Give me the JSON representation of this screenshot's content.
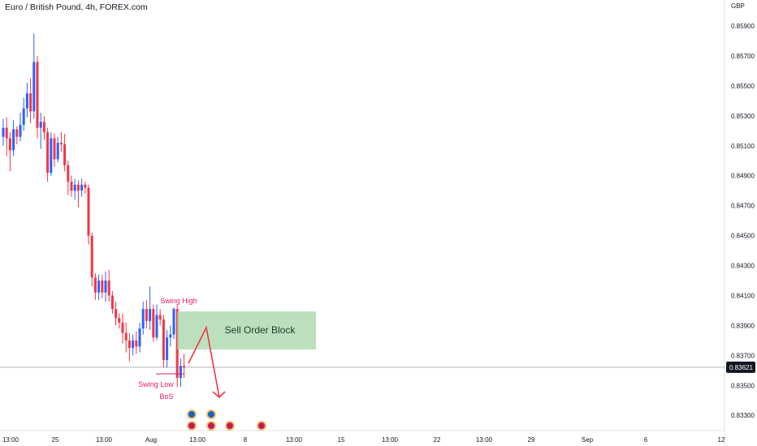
{
  "chart_data": {
    "type": "candlestick",
    "title": "Euro / British Pound, 4h, FOREX.com",
    "currency": "GBP",
    "ylim": [
      0.8322,
      0.8603
    ],
    "y_ticks": [
      "0.85900",
      "0.85700",
      "0.85500",
      "0.85300",
      "0.85100",
      "0.84900",
      "0.84700",
      "0.84500",
      "0.84300",
      "0.84100",
      "0.83900",
      "0.83700",
      "0.83500",
      "0.83300"
    ],
    "current_price": "0.83621",
    "x_ticks": [
      "13:00",
      "25",
      "13:00",
      "Aug",
      "13:00",
      "8",
      "13:00",
      "15",
      "13:00",
      "22",
      "13:00",
      "29",
      "Sep",
      "6",
      "12"
    ],
    "colors": {
      "up": "#2962ff",
      "down": "#f23645",
      "zone": "#a5d6a7",
      "arrow": "#f23645",
      "label": "#e91e63"
    },
    "candles": [
      [
        0.8516,
        0.8522,
        0.851,
        0.8528
      ],
      [
        0.8522,
        0.8515,
        0.8503,
        0.8529
      ],
      [
        0.8515,
        0.8507,
        0.8493,
        0.8519
      ],
      [
        0.8507,
        0.8521,
        0.8503,
        0.8527
      ],
      [
        0.8521,
        0.8516,
        0.8511,
        0.8523
      ],
      [
        0.8516,
        0.8524,
        0.8513,
        0.8532
      ],
      [
        0.8524,
        0.8535,
        0.852,
        0.8542
      ],
      [
        0.8535,
        0.8545,
        0.8529,
        0.8552
      ],
      [
        0.8545,
        0.8533,
        0.8525,
        0.8555
      ],
      [
        0.8533,
        0.8566,
        0.8528,
        0.8585
      ],
      [
        0.8566,
        0.8522,
        0.8515,
        0.857
      ],
      [
        0.8522,
        0.8526,
        0.8508,
        0.8532
      ],
      [
        0.8526,
        0.8519,
        0.8514,
        0.853
      ],
      [
        0.8519,
        0.8492,
        0.8486,
        0.8522
      ],
      [
        0.8492,
        0.8515,
        0.849,
        0.8519
      ],
      [
        0.8515,
        0.8501,
        0.8496,
        0.8518
      ],
      [
        0.8501,
        0.8512,
        0.8499,
        0.8516
      ],
      [
        0.8512,
        0.8511,
        0.8506,
        0.8519
      ],
      [
        0.8511,
        0.8497,
        0.8493,
        0.8518
      ],
      [
        0.8497,
        0.8486,
        0.8477,
        0.85
      ],
      [
        0.8486,
        0.848,
        0.8476,
        0.849
      ],
      [
        0.848,
        0.8484,
        0.8474,
        0.8488
      ],
      [
        0.8484,
        0.848,
        0.8469,
        0.8487
      ],
      [
        0.848,
        0.8484,
        0.8476,
        0.8488
      ],
      [
        0.8484,
        0.8482,
        0.8478,
        0.8486
      ],
      [
        0.8482,
        0.845,
        0.8444,
        0.8484
      ],
      [
        0.845,
        0.8422,
        0.8416,
        0.8452
      ],
      [
        0.8422,
        0.8412,
        0.8407,
        0.8425
      ],
      [
        0.8412,
        0.842,
        0.8407,
        0.8424
      ],
      [
        0.842,
        0.8412,
        0.8408,
        0.8424
      ],
      [
        0.8412,
        0.842,
        0.8406,
        0.8426
      ],
      [
        0.842,
        0.841,
        0.8406,
        0.8427
      ],
      [
        0.841,
        0.8401,
        0.8398,
        0.8413
      ],
      [
        0.8401,
        0.8395,
        0.839,
        0.8406
      ],
      [
        0.8395,
        0.8392,
        0.8388,
        0.8398
      ],
      [
        0.8392,
        0.8385,
        0.8378,
        0.8398
      ],
      [
        0.8385,
        0.838,
        0.8372,
        0.8392
      ],
      [
        0.838,
        0.8375,
        0.8366,
        0.8385
      ],
      [
        0.8375,
        0.838,
        0.837,
        0.8384
      ],
      [
        0.838,
        0.8376,
        0.8371,
        0.8386
      ],
      [
        0.8376,
        0.8388,
        0.8372,
        0.8392
      ],
      [
        0.8388,
        0.8401,
        0.8384,
        0.8406
      ],
      [
        0.8401,
        0.8393,
        0.8388,
        0.8407
      ],
      [
        0.8393,
        0.8401,
        0.8387,
        0.8416
      ],
      [
        0.8401,
        0.8382,
        0.8379,
        0.8404
      ],
      [
        0.8382,
        0.8397,
        0.838,
        0.8404
      ],
      [
        0.8397,
        0.8394,
        0.839,
        0.8401
      ],
      [
        0.8394,
        0.8367,
        0.8362,
        0.8397
      ],
      [
        0.8367,
        0.8382,
        0.8362,
        0.8387
      ],
      [
        0.8382,
        0.8384,
        0.8376,
        0.839
      ],
      [
        0.8384,
        0.8401,
        0.8381,
        0.8402
      ],
      [
        0.8401,
        0.8355,
        0.8349,
        0.8404
      ],
      [
        0.8355,
        0.8363,
        0.8349,
        0.8368
      ],
      [
        0.8363,
        0.8362,
        0.8355,
        0.8371
      ]
    ],
    "annotations": {
      "swing_high": "Swing High",
      "swing_low": "Swing Low",
      "bos": "BoS",
      "zone": "Sell Order Block"
    }
  }
}
